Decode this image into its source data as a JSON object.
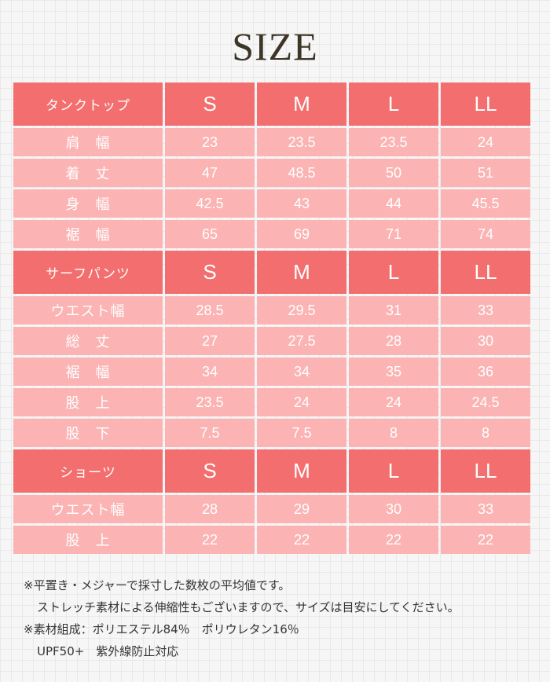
{
  "title": "SIZE",
  "sections": [
    {
      "header": [
        "タンクトップ",
        "S",
        "M",
        "L",
        "LL"
      ],
      "rows": [
        [
          "肩　幅",
          "23",
          "23.5",
          "23.5",
          "24"
        ],
        [
          "着　丈",
          "47",
          "48.5",
          "50",
          "51"
        ],
        [
          "身　幅",
          "42.5",
          "43",
          "44",
          "45.5"
        ],
        [
          "裾　幅",
          "65",
          "69",
          "71",
          "74"
        ]
      ]
    },
    {
      "header": [
        "サーフパンツ",
        "S",
        "M",
        "L",
        "LL"
      ],
      "rows": [
        [
          "ウエスト幅",
          "28.5",
          "29.5",
          "31",
          "33"
        ],
        [
          "総　丈",
          "27",
          "27.5",
          "28",
          "30"
        ],
        [
          "裾　幅",
          "34",
          "34",
          "35",
          "36"
        ],
        [
          "股　上",
          "23.5",
          "24",
          "24",
          "24.5"
        ],
        [
          "股　下",
          "7.5",
          "7.5",
          "8",
          "8"
        ]
      ]
    },
    {
      "header": [
        "ショーツ",
        "S",
        "M",
        "L",
        "LL"
      ],
      "rows": [
        [
          "ウエスト幅",
          "28",
          "29",
          "30",
          "33"
        ],
        [
          "股　上",
          "22",
          "22",
          "22",
          "22"
        ]
      ]
    }
  ],
  "notes": [
    "※平置き・メジャーで採寸した数枚の平均値です。",
    "ストレッチ素材による伸縮性もございますので、サイズは目安にしてください。",
    "※素材組成：ポリエステル84％　ポリウレタン16％",
    "UPF50+　紫外線防止対応"
  ],
  "colors": {
    "header_bg": "#f36e6e",
    "row_bg": "#fbb3b3",
    "title": "#3d3526"
  }
}
